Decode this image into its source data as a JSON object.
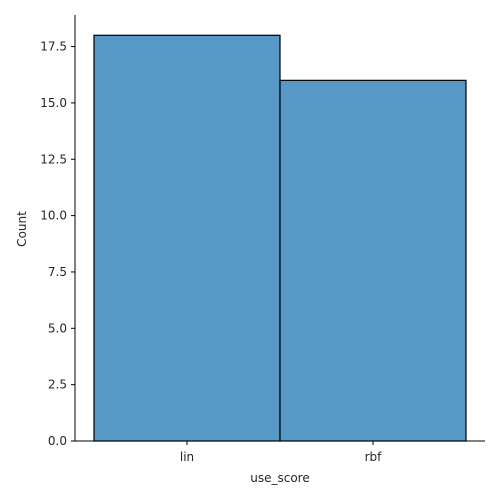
{
  "chart_data": {
    "type": "bar",
    "categories": [
      "lin",
      "rbf"
    ],
    "values": [
      18,
      16
    ],
    "xlabel": "use_score",
    "ylabel": "Count",
    "ylim": [
      0,
      18.9
    ],
    "yticks": [
      "0.0",
      "2.5",
      "5.0",
      "7.5",
      "10.0",
      "12.5",
      "15.0",
      "17.5"
    ],
    "grid": false,
    "legend": "none",
    "bar_color": "#5799c6",
    "edge_color": "#000000"
  }
}
